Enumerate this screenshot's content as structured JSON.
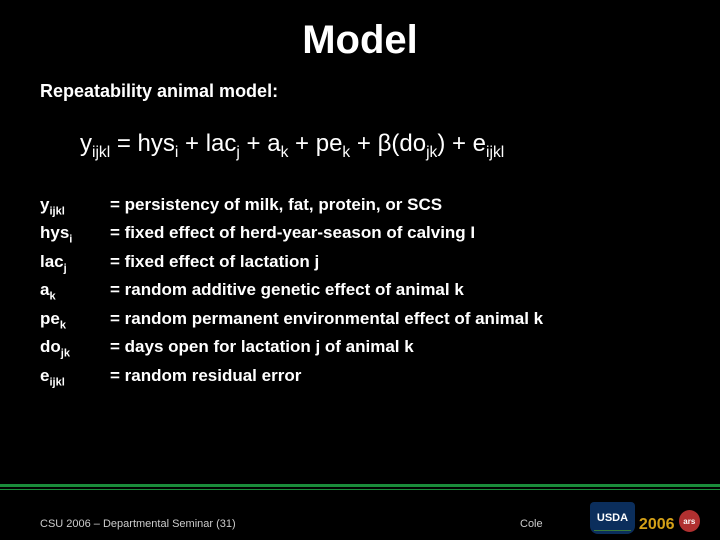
{
  "header_faint": "",
  "title": "Model",
  "subtitle": "Repeatability animal model:",
  "equation_html": "y<sub>ijkl</sub> = hys<sub>i</sub> + lac<sub>j</sub> + a<sub>k</sub> + pe<sub>k</sub> + β(do<sub>jk</sub>) + e<sub>ijkl</sub>",
  "defs": [
    {
      "term_html": "y<sub>ijkl</sub>",
      "desc": "= persistency of milk, fat, protein, or SCS"
    },
    {
      "term_html": "hys<sub>i</sub>",
      "desc": "= fixed effect of herd-year-season of calving I"
    },
    {
      "term_html": "lac<sub>j</sub>",
      "desc": "= fixed effect of lactation j"
    },
    {
      "term_html": "a<sub>k</sub>",
      "desc": "= random additive genetic effect of animal k"
    },
    {
      "term_html": "pe<sub>k</sub>",
      "desc": "= random permanent environmental effect of animal k"
    },
    {
      "term_html": "do<sub>jk</sub>",
      "desc": "= days open for lactation j of animal k"
    },
    {
      "term_html": "e<sub>ijkl</sub>",
      "desc": "= random residual error"
    }
  ],
  "footer": {
    "left": "CSU 2006 – Departmental Seminar (31)",
    "center": "Cole",
    "usda": "USDA",
    "year": "2006",
    "ars": "ars"
  },
  "colors": {
    "background": "#000000",
    "text": "#ffffff",
    "accent_line": "#1a8c3a",
    "footer_text": "#cccccc",
    "usda_bg": "#0b2e5c",
    "year_color": "#d4a017",
    "ars_bg": "#b03030"
  }
}
